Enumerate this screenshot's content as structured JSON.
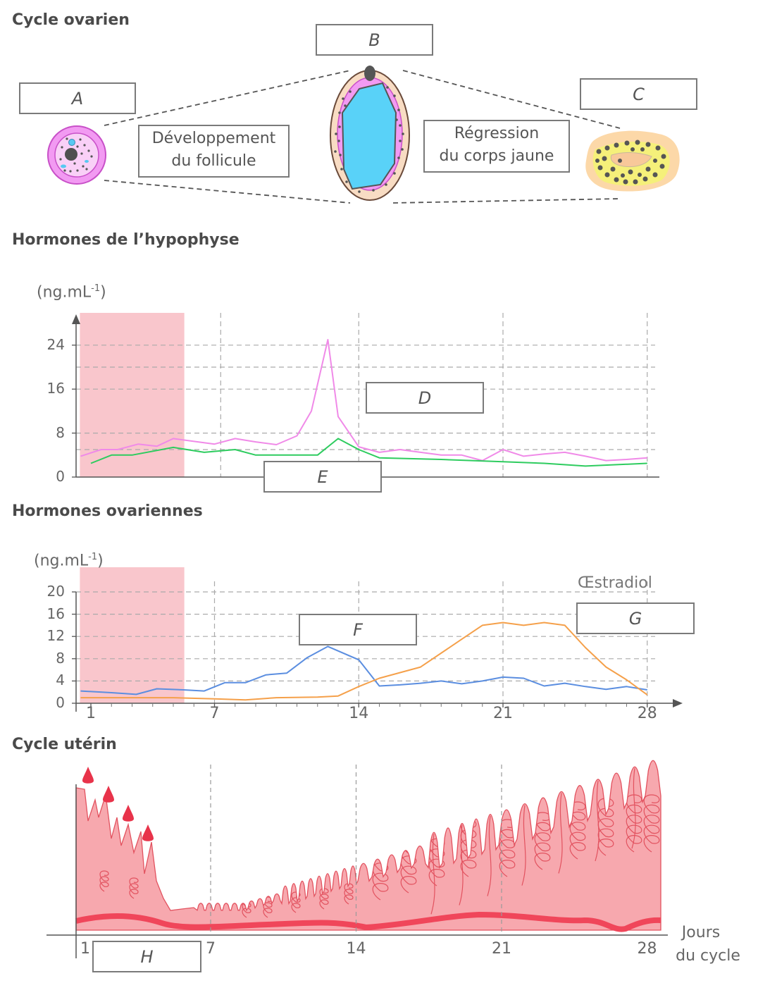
{
  "sections": {
    "ovarian_cycle": "Cycle ovarien",
    "pituitary_hormones": "Hormones de l’hypophyse",
    "ovarian_hormones": "Hormones ovariennes",
    "uterine_cycle": "Cycle utérin"
  },
  "labels": {
    "A": "A",
    "B": "B",
    "C": "C",
    "D": "D",
    "E": "E",
    "F": "F",
    "G": "G",
    "H": "H"
  },
  "text_boxes": {
    "development_line1": "Développement",
    "development_line2": "du follicule",
    "regression_line1": "Régression",
    "regression_line2": "du corps jaune"
  },
  "colors": {
    "menstruation_band": "#f9c6cc",
    "lh_curve": "#f08ae8",
    "fsh_curve": "#2ecc5f",
    "progesterone_curve": "#5b8ee0",
    "estradiol_curve": "#f5a04a",
    "endometrium": "#f7a8ae",
    "basal_layer": "#f0465a",
    "blood_drop": "#e8334a"
  },
  "chart_data": [
    {
      "type": "line",
      "title": "Hormones de l’hypophyse",
      "ylabel": "(ng.mL",
      "ylabel_sup": "-1",
      "ylabel_close": ")",
      "ylim": [
        0,
        28
      ],
      "yticks": [
        "0",
        "8",
        "16",
        "24"
      ],
      "ytick_values": [
        0,
        8,
        16,
        24
      ],
      "grid": true,
      "highlight_days": [
        0.5,
        5.5
      ],
      "series": [
        {
          "key": "D",
          "x": [
            0.5,
            1.5,
            2.3,
            3.3,
            4.2,
            5,
            6.2,
            7,
            8,
            9,
            10,
            11,
            11.7,
            12.5,
            13,
            14,
            15,
            16,
            17,
            18,
            19,
            20,
            21,
            22,
            23,
            24,
            25,
            26,
            27,
            28
          ],
          "values": [
            3.8,
            5,
            5,
            6,
            5.6,
            7,
            6.4,
            6,
            7,
            6.4,
            5.9,
            7.5,
            12,
            25,
            11,
            5.5,
            4.5,
            5,
            4.5,
            4,
            4,
            3,
            5,
            3.8,
            4.2,
            4.5,
            3.8,
            3,
            3.2,
            3.5
          ],
          "color": "#f08ae8"
        },
        {
          "key": "E",
          "x": [
            1,
            2,
            3,
            5,
            6.5,
            8,
            9,
            10,
            12,
            13,
            14,
            15,
            18,
            21,
            23,
            25,
            28
          ],
          "values": [
            2.5,
            4,
            4,
            5.4,
            4.5,
            5,
            4,
            4,
            4,
            7,
            5,
            3.5,
            3.2,
            2.8,
            2.5,
            2,
            2.5
          ],
          "color": "#2ecc5f"
        }
      ]
    },
    {
      "type": "line",
      "title": "Hormones ovariennes",
      "ylabel": "(ng.mL",
      "ylabel_sup": "-1",
      "ylabel_close": ")",
      "ylim": [
        0,
        21
      ],
      "yticks": [
        "0",
        "4",
        "8",
        "12",
        "16",
        "20"
      ],
      "ytick_values": [
        0,
        4,
        8,
        12,
        16,
        20
      ],
      "xticks": [
        "1",
        "7",
        "14",
        "21",
        "28"
      ],
      "xtick_values": [
        1,
        7,
        14,
        21,
        28
      ],
      "grid": true,
      "highlight_days": [
        0.5,
        5.5
      ],
      "series_label": "Œstradiol",
      "series": [
        {
          "key": "F",
          "x": [
            0.5,
            2,
            3.2,
            4.2,
            5.5,
            6.5,
            7.5,
            8.5,
            9.5,
            10.5,
            11.5,
            12.5,
            14,
            15,
            16,
            17,
            18,
            19,
            20,
            21,
            22,
            23,
            24,
            25,
            26,
            27,
            28
          ],
          "values": [
            2.2,
            1.9,
            1.6,
            2.6,
            2.4,
            2.2,
            3.7,
            3.7,
            5.1,
            5.4,
            8.2,
            10.2,
            7.8,
            3.1,
            3.3,
            3.6,
            4.0,
            3.5,
            4.0,
            4.7,
            4.5,
            3.1,
            3.6,
            3.0,
            2.5,
            3.0,
            2.4
          ],
          "color": "#5b8ee0"
        },
        {
          "key": "G",
          "x": [
            0.5,
            2,
            5,
            7,
            8.5,
            10,
            12,
            13,
            14,
            15,
            17,
            19,
            20,
            21,
            22,
            23,
            24,
            25,
            26,
            27,
            28
          ],
          "values": [
            1.0,
            1.0,
            1.0,
            0.8,
            0.6,
            1.0,
            1.1,
            1.3,
            3.0,
            4.5,
            6.5,
            11.5,
            14.0,
            14.5,
            14.0,
            14.5,
            14.0,
            10.0,
            6.5,
            4.2,
            1.5
          ],
          "color": "#f5a04a"
        }
      ]
    }
  ],
  "uterine": {
    "xticks": [
      "1",
      "7",
      "14",
      "21",
      "28"
    ],
    "xtick_values": [
      1,
      7,
      14,
      21,
      28
    ],
    "x_label_line1": "Jours",
    "x_label_line2": "du cycle"
  }
}
